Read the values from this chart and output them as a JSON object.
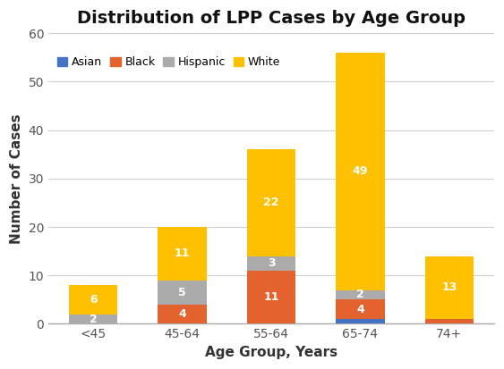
{
  "title": "Distribution of LPP Cases by Age Group",
  "xlabel": "Age Group, Years",
  "ylabel": "Number of Cases",
  "categories": [
    "<45",
    "45-64",
    "55-64",
    "65-74",
    "74+"
  ],
  "series": {
    "Asian": [
      0,
      0,
      0,
      1,
      0
    ],
    "Black": [
      0,
      4,
      11,
      4,
      1
    ],
    "Hispanic": [
      2,
      5,
      3,
      2,
      0
    ],
    "White": [
      6,
      11,
      22,
      49,
      13
    ]
  },
  "labels": {
    "Asian": [
      null,
      null,
      null,
      null,
      null
    ],
    "Black": [
      null,
      "4",
      "11",
      "4",
      null
    ],
    "Hispanic": [
      "2",
      "5",
      "3",
      "2",
      null
    ],
    "White": [
      "6",
      "11",
      "22",
      "49",
      "13"
    ]
  },
  "colors": {
    "Asian": "#4472C4",
    "Black": "#E4622D",
    "Hispanic": "#ABABAB",
    "White": "#FFC000"
  },
  "ylim": [
    0,
    60
  ],
  "yticks": [
    0,
    10,
    20,
    30,
    40,
    50,
    60
  ],
  "background_color": "#FFFFFF",
  "grid_color": "#D0D0D0",
  "title_fontsize": 14,
  "axis_label_fontsize": 11,
  "tick_fontsize": 10,
  "legend_fontsize": 9,
  "bar_label_fontsize": 9,
  "bar_label_color": "#FFFFFF",
  "bar_width": 0.55
}
